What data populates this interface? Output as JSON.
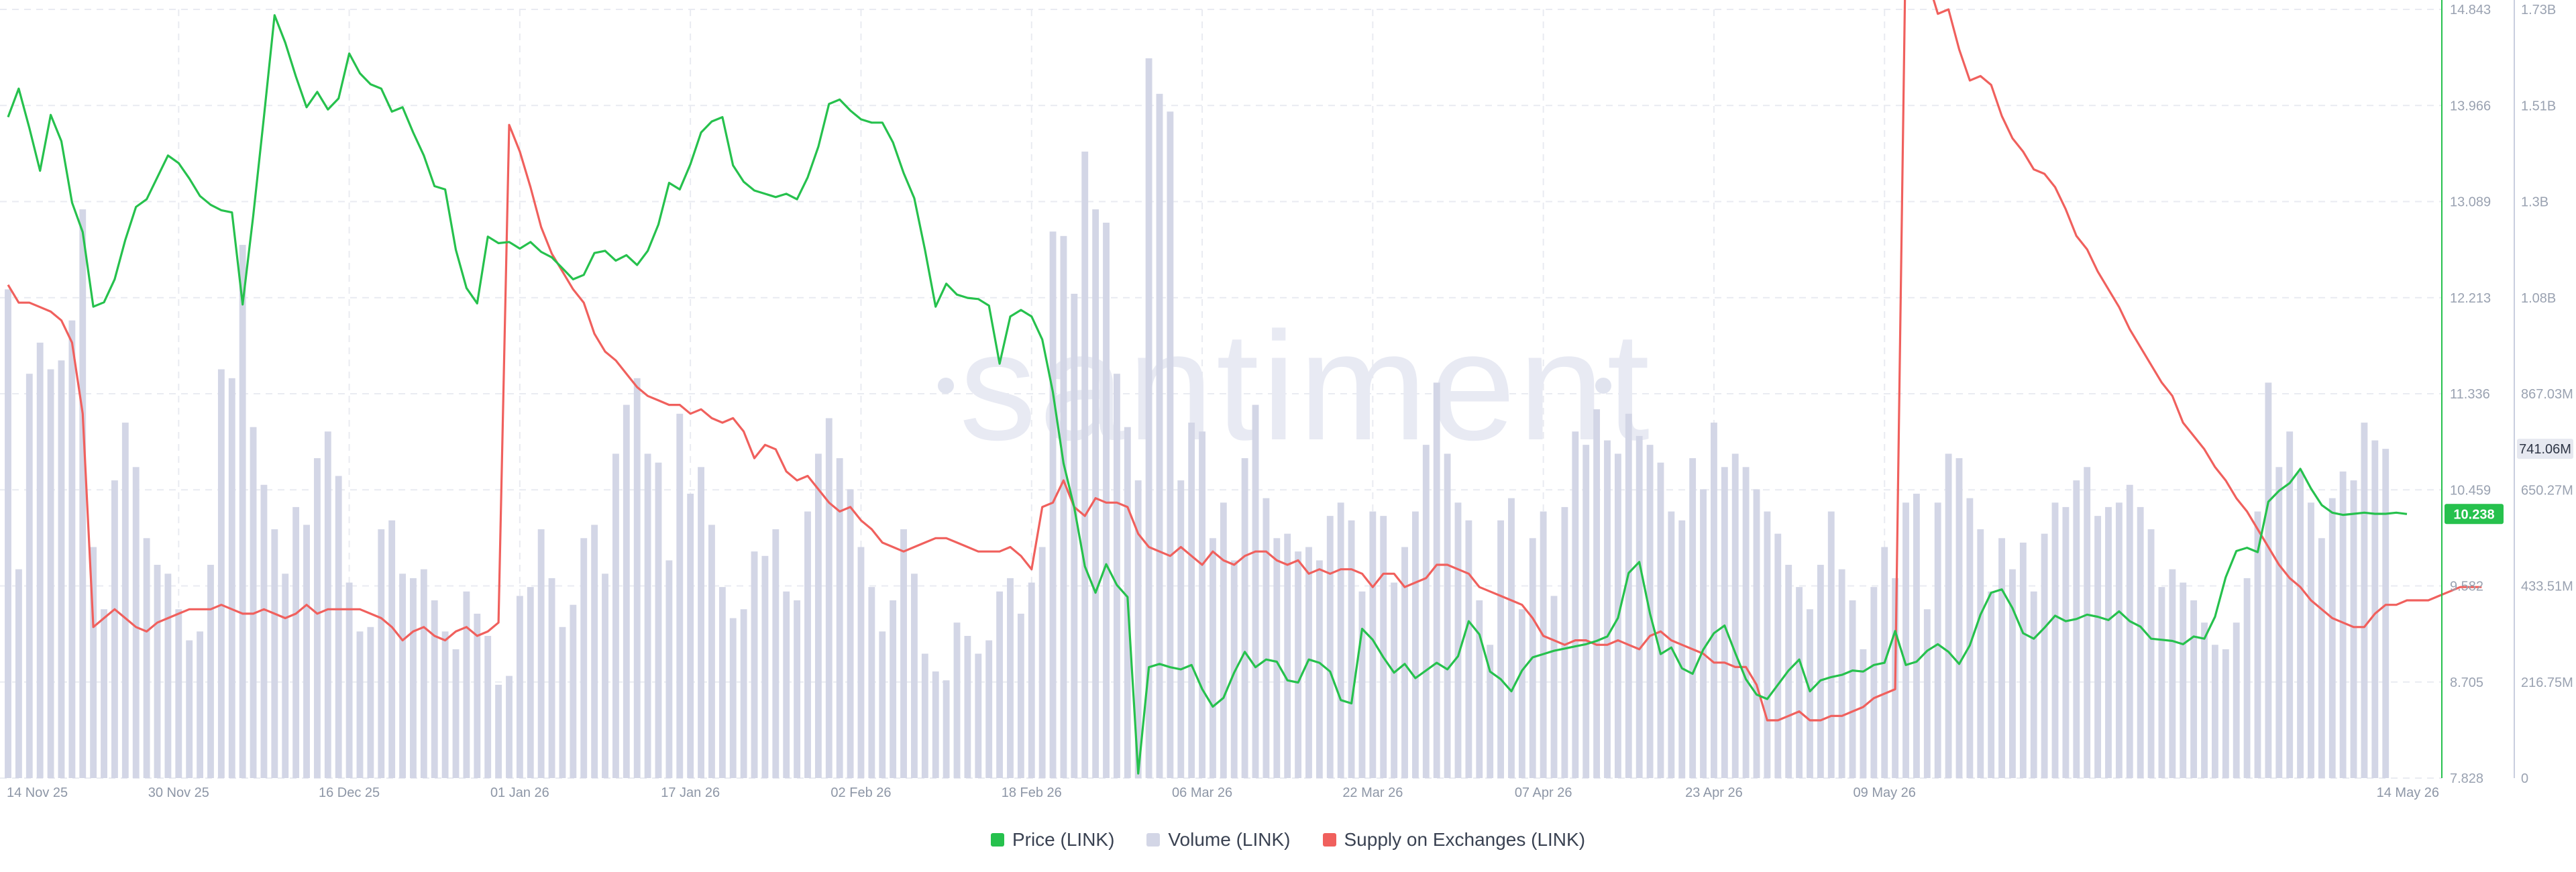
{
  "colors": {
    "price": "#26c14d",
    "volume": "#d3d6e6",
    "supply": "#f0605d",
    "grid": "#e9ebf1",
    "price_badge": "#26c14d",
    "volume_badge": "#e6e8f0"
  },
  "watermark": "santiment",
  "legend": [
    {
      "label": "Price (LINK)",
      "color": "#26c14d"
    },
    {
      "label": "Volume (LINK)",
      "color": "#d3d6e6"
    },
    {
      "label": "Supply on Exchanges (LINK)",
      "color": "#f0605d"
    }
  ],
  "chart_data": {
    "type": "bar",
    "x_tick_labels": [
      "14 Nov 25",
      "30 Nov 25",
      "16 Dec 25",
      "01 Jan 26",
      "17 Jan 26",
      "02 Feb 26",
      "18 Feb 26",
      "06 Mar 26",
      "22 Mar 26",
      "07 Apr 26",
      "23 Apr 26",
      "09 May 26",
      "14 May 26"
    ],
    "price_axis": {
      "ticks": [
        "14.843",
        "13.966",
        "13.089",
        "12.213",
        "11.336",
        "10.459",
        "9.582",
        "8.705",
        "7.828"
      ],
      "min": 7.828,
      "max": 14.843
    },
    "volume_axis": {
      "ticks": [
        "1.73B",
        "1.51B",
        "1.3B",
        "1.08B",
        "867.03M",
        "650.27M",
        "433.51M",
        "216.75M",
        "0"
      ],
      "min": 0,
      "max": 1.73
    },
    "current_price_label": "10.238",
    "current_volume_label": "741.06M",
    "grid": true,
    "legend_position": "bottom-center",
    "series": [
      {
        "name": "Price (LINK)",
        "type": "line",
        "axis": "price",
        "values": [
          13.86,
          14.12,
          13.76,
          13.37,
          13.88,
          13.64,
          13.08,
          12.81,
          12.13,
          12.17,
          12.38,
          12.74,
          13.04,
          13.11,
          13.31,
          13.51,
          13.44,
          13.3,
          13.14,
          13.06,
          13.01,
          12.99,
          12.15,
          12.96,
          13.86,
          14.79,
          14.54,
          14.23,
          13.95,
          14.09,
          13.93,
          14.03,
          14.44,
          14.26,
          14.16,
          14.12,
          13.91,
          13.95,
          13.72,
          13.51,
          13.23,
          13.2,
          12.65,
          12.3,
          12.16,
          12.77,
          12.71,
          12.72,
          12.66,
          12.72,
          12.63,
          12.58,
          12.48,
          12.38,
          12.42,
          12.62,
          12.64,
          12.55,
          12.6,
          12.51,
          12.64,
          12.88,
          13.26,
          13.2,
          13.43,
          13.72,
          13.82,
          13.86,
          13.42,
          13.27,
          13.19,
          13.16,
          13.13,
          13.16,
          13.11,
          13.31,
          13.59,
          13.98,
          14.02,
          13.92,
          13.84,
          13.81,
          13.81,
          13.63,
          13.35,
          13.12,
          12.65,
          12.13,
          12.34,
          12.24,
          12.21,
          12.2,
          12.14,
          11.61,
          12.04,
          12.1,
          12.04,
          11.83,
          11.35,
          10.7,
          10.3,
          9.76,
          9.52,
          9.78,
          9.59,
          9.48,
          7.87,
          8.84,
          8.87,
          8.84,
          8.82,
          8.86,
          8.64,
          8.48,
          8.56,
          8.79,
          8.98,
          8.84,
          8.91,
          8.89,
          8.72,
          8.7,
          8.91,
          8.88,
          8.8,
          8.54,
          8.51,
          9.19,
          9.09,
          8.93,
          8.79,
          8.87,
          8.74,
          8.81,
          8.88,
          8.82,
          8.94,
          9.26,
          9.14,
          8.8,
          8.73,
          8.62,
          8.81,
          8.93,
          8.96,
          8.99,
          9.01,
          9.03,
          9.05,
          9.08,
          9.12,
          9.29,
          9.7,
          9.8,
          9.33,
          8.96,
          9.02,
          8.83,
          8.78,
          9.0,
          9.15,
          9.22,
          8.97,
          8.73,
          8.59,
          8.55,
          8.68,
          8.81,
          8.91,
          8.62,
          8.72,
          8.75,
          8.77,
          8.81,
          8.8,
          8.86,
          8.88,
          9.17,
          8.86,
          8.89,
          8.99,
          9.05,
          8.98,
          8.87,
          9.04,
          9.32,
          9.52,
          9.55,
          9.38,
          9.15,
          9.1,
          9.2,
          9.31,
          9.26,
          9.28,
          9.32,
          9.3,
          9.27,
          9.35,
          9.26,
          9.21,
          9.1,
          9.09,
          9.08,
          9.05,
          9.12,
          9.1,
          9.3,
          9.66,
          9.9,
          9.93,
          9.89,
          10.35,
          10.45,
          10.52,
          10.65,
          10.47,
          10.32,
          10.25,
          10.23,
          10.24,
          10.25,
          10.24,
          10.24,
          10.25,
          10.238
        ]
      },
      {
        "name": "Volume (LINK)",
        "type": "bar",
        "axis": "volume",
        "values": [
          1.1,
          0.47,
          0.91,
          0.98,
          0.92,
          0.94,
          1.03,
          1.28,
          0.52,
          0.38,
          0.67,
          0.8,
          0.7,
          0.54,
          0.48,
          0.46,
          0.38,
          0.31,
          0.33,
          0.48,
          0.92,
          0.9,
          1.2,
          0.79,
          0.66,
          0.56,
          0.46,
          0.61,
          0.57,
          0.72,
          0.78,
          0.68,
          0.44,
          0.33,
          0.34,
          0.56,
          0.58,
          0.46,
          0.45,
          0.47,
          0.4,
          0.33,
          0.29,
          0.42,
          0.37,
          0.32,
          0.21,
          0.23,
          0.41,
          0.43,
          0.56,
          0.45,
          0.34,
          0.39,
          0.54,
          0.57,
          0.46,
          0.73,
          0.84,
          0.9,
          0.73,
          0.71,
          0.49,
          0.82,
          0.64,
          0.7,
          0.57,
          0.43,
          0.36,
          0.38,
          0.51,
          0.5,
          0.56,
          0.42,
          0.4,
          0.6,
          0.73,
          0.81,
          0.72,
          0.65,
          0.52,
          0.43,
          0.33,
          0.4,
          0.56,
          0.46,
          0.28,
          0.24,
          0.22,
          0.35,
          0.32,
          0.28,
          0.31,
          0.42,
          0.45,
          0.37,
          0.44,
          0.52,
          1.23,
          1.22,
          1.09,
          1.41,
          1.28,
          1.25,
          0.91,
          0.79,
          0.67,
          1.62,
          1.54,
          1.5,
          0.67,
          0.8,
          0.78,
          0.54,
          0.62,
          0.49,
          0.72,
          0.84,
          0.63,
          0.54,
          0.55,
          0.51,
          0.52,
          0.49,
          0.59,
          0.62,
          0.58,
          0.42,
          0.6,
          0.59,
          0.44,
          0.52,
          0.6,
          0.75,
          0.89,
          0.73,
          0.62,
          0.58,
          0.4,
          0.3,
          0.58,
          0.63,
          0.38,
          0.54,
          0.6,
          0.41,
          0.61,
          0.78,
          0.75,
          0.83,
          0.76,
          0.73,
          0.82,
          0.77,
          0.75,
          0.71,
          0.6,
          0.58,
          0.72,
          0.65,
          0.8,
          0.7,
          0.73,
          0.7,
          0.65,
          0.6,
          0.55,
          0.48,
          0.43,
          0.38,
          0.48,
          0.6,
          0.47,
          0.4,
          0.29,
          0.43,
          0.52,
          0.45,
          0.62,
          0.64,
          0.38,
          0.62,
          0.73,
          0.72,
          0.63,
          0.56,
          0.42,
          0.54,
          0.47,
          0.53,
          0.42,
          0.55,
          0.62,
          0.61,
          0.67,
          0.7,
          0.59,
          0.61,
          0.62,
          0.66,
          0.61,
          0.56,
          0.43,
          0.47,
          0.44,
          0.4,
          0.35,
          0.3,
          0.29,
          0.35,
          0.45,
          0.6,
          0.89,
          0.7,
          0.78,
          0.69,
          0.62,
          0.54,
          0.63,
          0.69,
          0.67,
          0.8,
          0.76,
          0.741
        ]
      },
      {
        "name": "Supply on Exchanges (LINK)",
        "type": "line",
        "axis": "scaled",
        "values": [
          1.11,
          1.07,
          1.07,
          1.06,
          1.05,
          1.03,
          0.98,
          0.82,
          0.34,
          0.36,
          0.38,
          0.36,
          0.34,
          0.33,
          0.35,
          0.36,
          0.37,
          0.38,
          0.38,
          0.38,
          0.39,
          0.38,
          0.37,
          0.37,
          0.38,
          0.37,
          0.36,
          0.37,
          0.39,
          0.37,
          0.38,
          0.38,
          0.38,
          0.38,
          0.37,
          0.36,
          0.34,
          0.31,
          0.33,
          0.34,
          0.32,
          0.31,
          0.33,
          0.34,
          0.32,
          0.33,
          0.35,
          1.47,
          1.41,
          1.33,
          1.24,
          1.18,
          1.14,
          1.1,
          1.07,
          1.0,
          0.96,
          0.94,
          0.91,
          0.88,
          0.86,
          0.85,
          0.84,
          0.84,
          0.82,
          0.83,
          0.81,
          0.8,
          0.81,
          0.78,
          0.72,
          0.75,
          0.74,
          0.69,
          0.67,
          0.68,
          0.65,
          0.62,
          0.6,
          0.61,
          0.58,
          0.56,
          0.53,
          0.52,
          0.51,
          0.52,
          0.53,
          0.54,
          0.54,
          0.53,
          0.52,
          0.51,
          0.51,
          0.51,
          0.52,
          0.5,
          0.47,
          0.61,
          0.62,
          0.67,
          0.61,
          0.59,
          0.63,
          0.62,
          0.62,
          0.61,
          0.55,
          0.52,
          0.51,
          0.5,
          0.52,
          0.5,
          0.48,
          0.51,
          0.49,
          0.48,
          0.5,
          0.51,
          0.51,
          0.49,
          0.48,
          0.49,
          0.46,
          0.47,
          0.46,
          0.47,
          0.47,
          0.46,
          0.43,
          0.46,
          0.46,
          0.43,
          0.44,
          0.45,
          0.48,
          0.48,
          0.47,
          0.46,
          0.43,
          0.42,
          0.41,
          0.4,
          0.39,
          0.36,
          0.32,
          0.31,
          0.3,
          0.31,
          0.31,
          0.3,
          0.3,
          0.31,
          0.3,
          0.29,
          0.32,
          0.33,
          0.31,
          0.3,
          0.29,
          0.28,
          0.26,
          0.26,
          0.25,
          0.25,
          0.21,
          0.13,
          0.13,
          0.14,
          0.15,
          0.13,
          0.13,
          0.14,
          0.14,
          0.15,
          0.16,
          0.18,
          0.19,
          0.2,
          1.9,
          1.86,
          1.8,
          1.72,
          1.73,
          1.64,
          1.57,
          1.58,
          1.56,
          1.49,
          1.44,
          1.41,
          1.37,
          1.36,
          1.33,
          1.28,
          1.22,
          1.19,
          1.14,
          1.1,
          1.06,
          1.01,
          0.97,
          0.93,
          0.89,
          0.86,
          0.8,
          0.77,
          0.74,
          0.7,
          0.67,
          0.63,
          0.6,
          0.56,
          0.52,
          0.48,
          0.45,
          0.43,
          0.4,
          0.38,
          0.36,
          0.35,
          0.34,
          0.34,
          0.37,
          0.39,
          0.39,
          0.4,
          0.4,
          0.4,
          0.41,
          0.42,
          0.43,
          0.43,
          0.43
        ]
      }
    ]
  }
}
